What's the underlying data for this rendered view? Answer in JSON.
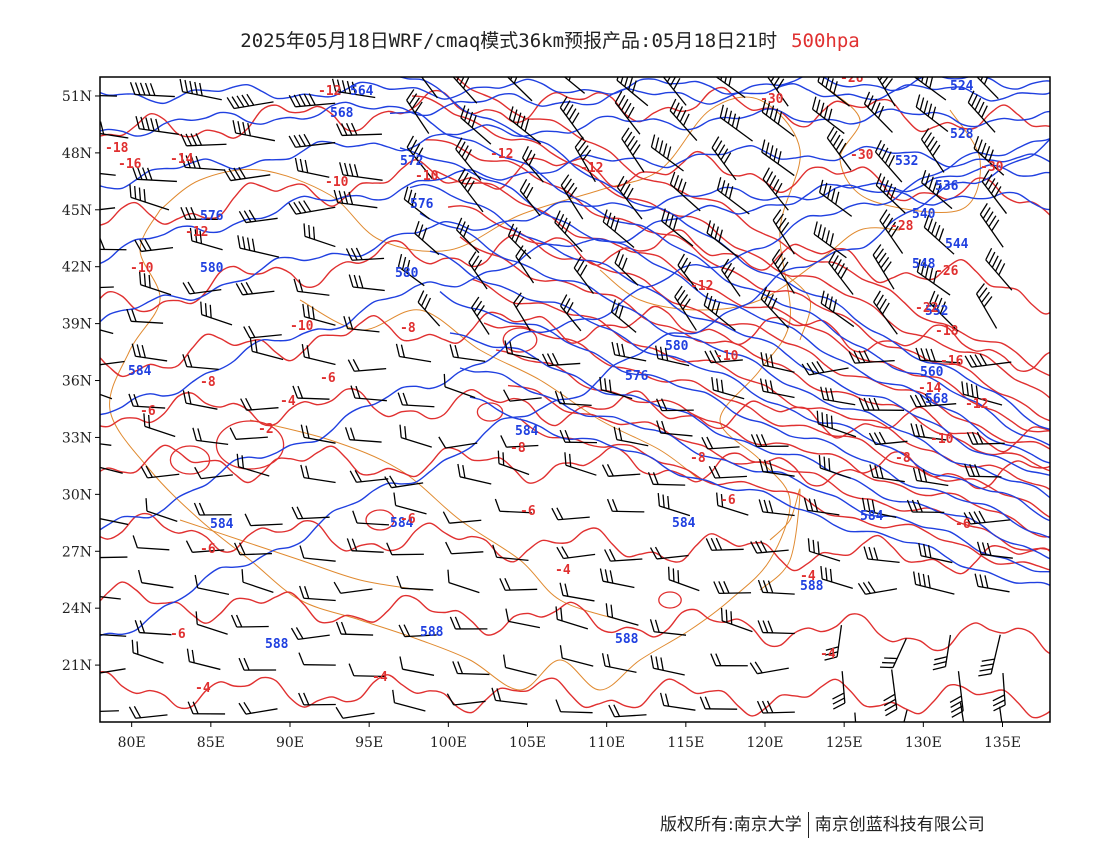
{
  "title": {
    "main": "2025年05月18日WRF/cmaq模式36km预报产品:05月18日21时",
    "level": "500hpa"
  },
  "colors": {
    "height_contour": "#2040e0",
    "temperature_contour": "#e03030",
    "border": "#e08a30",
    "wind_barb": "#000000"
  },
  "chart_data": {
    "type": "map",
    "lon_range": [
      78,
      138
    ],
    "lat_range": [
      18,
      52
    ],
    "x_ticks": [
      "80E",
      "85E",
      "90E",
      "95E",
      "100E",
      "105E",
      "110E",
      "115E",
      "120E",
      "125E",
      "130E",
      "135E"
    ],
    "x_tick_values": [
      80,
      85,
      90,
      95,
      100,
      105,
      110,
      115,
      120,
      125,
      130,
      135
    ],
    "y_ticks": [
      "51N",
      "48N",
      "45N",
      "42N",
      "39N",
      "36N",
      "33N",
      "30N",
      "27N",
      "24N",
      "21N"
    ],
    "y_tick_values": [
      51,
      48,
      45,
      42,
      39,
      36,
      33,
      30,
      27,
      24,
      21
    ],
    "height_labels": [
      "564",
      "568",
      "572",
      "576",
      "580",
      "584",
      "588",
      "524",
      "528",
      "532",
      "536",
      "540",
      "544",
      "548",
      "552",
      "560",
      "568"
    ],
    "temperature_labels": [
      "-12",
      "-18",
      "-16",
      "-14",
      "-10",
      "-8",
      "-6",
      "-4",
      "-2",
      "-20",
      "-22",
      "-26",
      "-28",
      "-30",
      "-16",
      "-12",
      "-10"
    ]
  },
  "footer": {
    "left": "版权所有:南京大学",
    "right": "南京创蓝科技有限公司"
  }
}
